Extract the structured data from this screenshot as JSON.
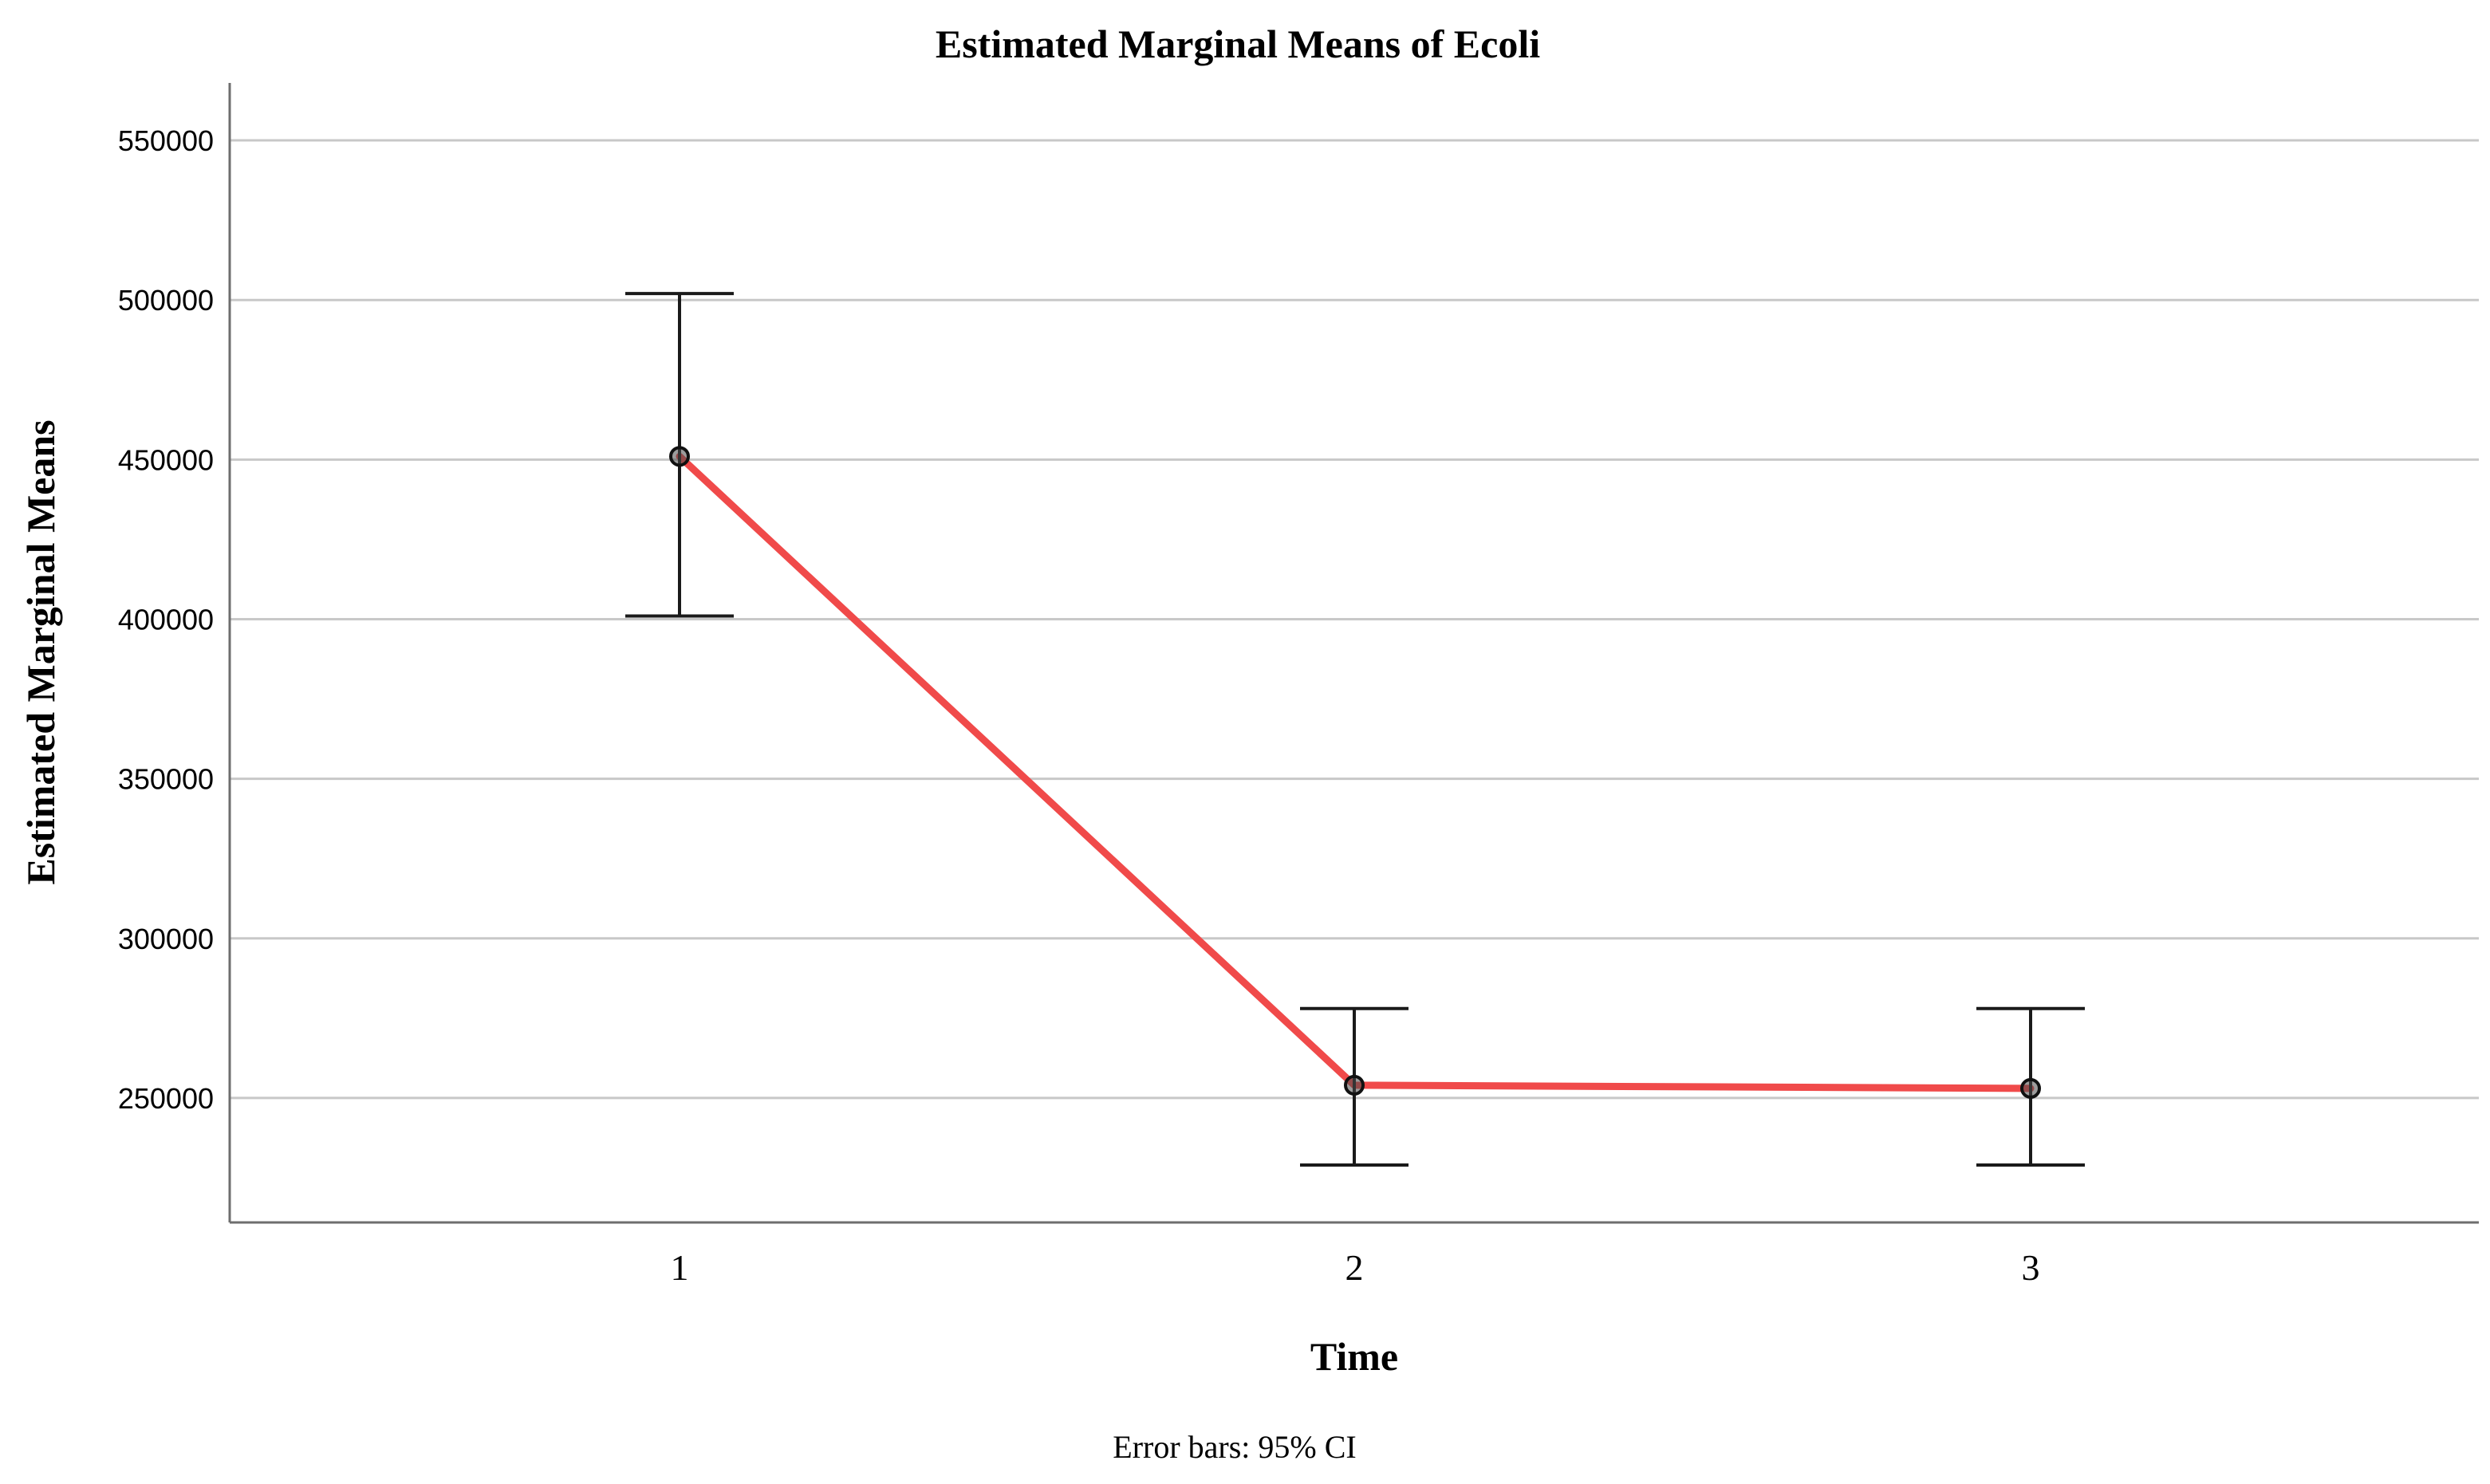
{
  "chart_data": {
    "type": "line",
    "title": "Estimated Marginal Means of Ecoli",
    "xlabel": "Time",
    "ylabel": "Estimated Marginal Means",
    "footnote": "Error bars: 95% CI",
    "categories": [
      "1",
      "2",
      "3"
    ],
    "yticks": [
      "250000",
      "300000",
      "350000",
      "400000",
      "450000",
      "500000",
      "550000"
    ],
    "ylim": [
      211000,
      568000
    ],
    "grid": true,
    "series": [
      {
        "values": [
          451000,
          254000,
          253000
        ],
        "ci_lower": [
          401000,
          229000,
          229000
        ],
        "ci_upper": [
          502000,
          278000,
          278000
        ],
        "color": "#f04a4a"
      }
    ],
    "colors": {
      "gridline": "#c8c8c8",
      "axis": "#6e6e6e",
      "errorbar": "#1a1a1a"
    }
  }
}
